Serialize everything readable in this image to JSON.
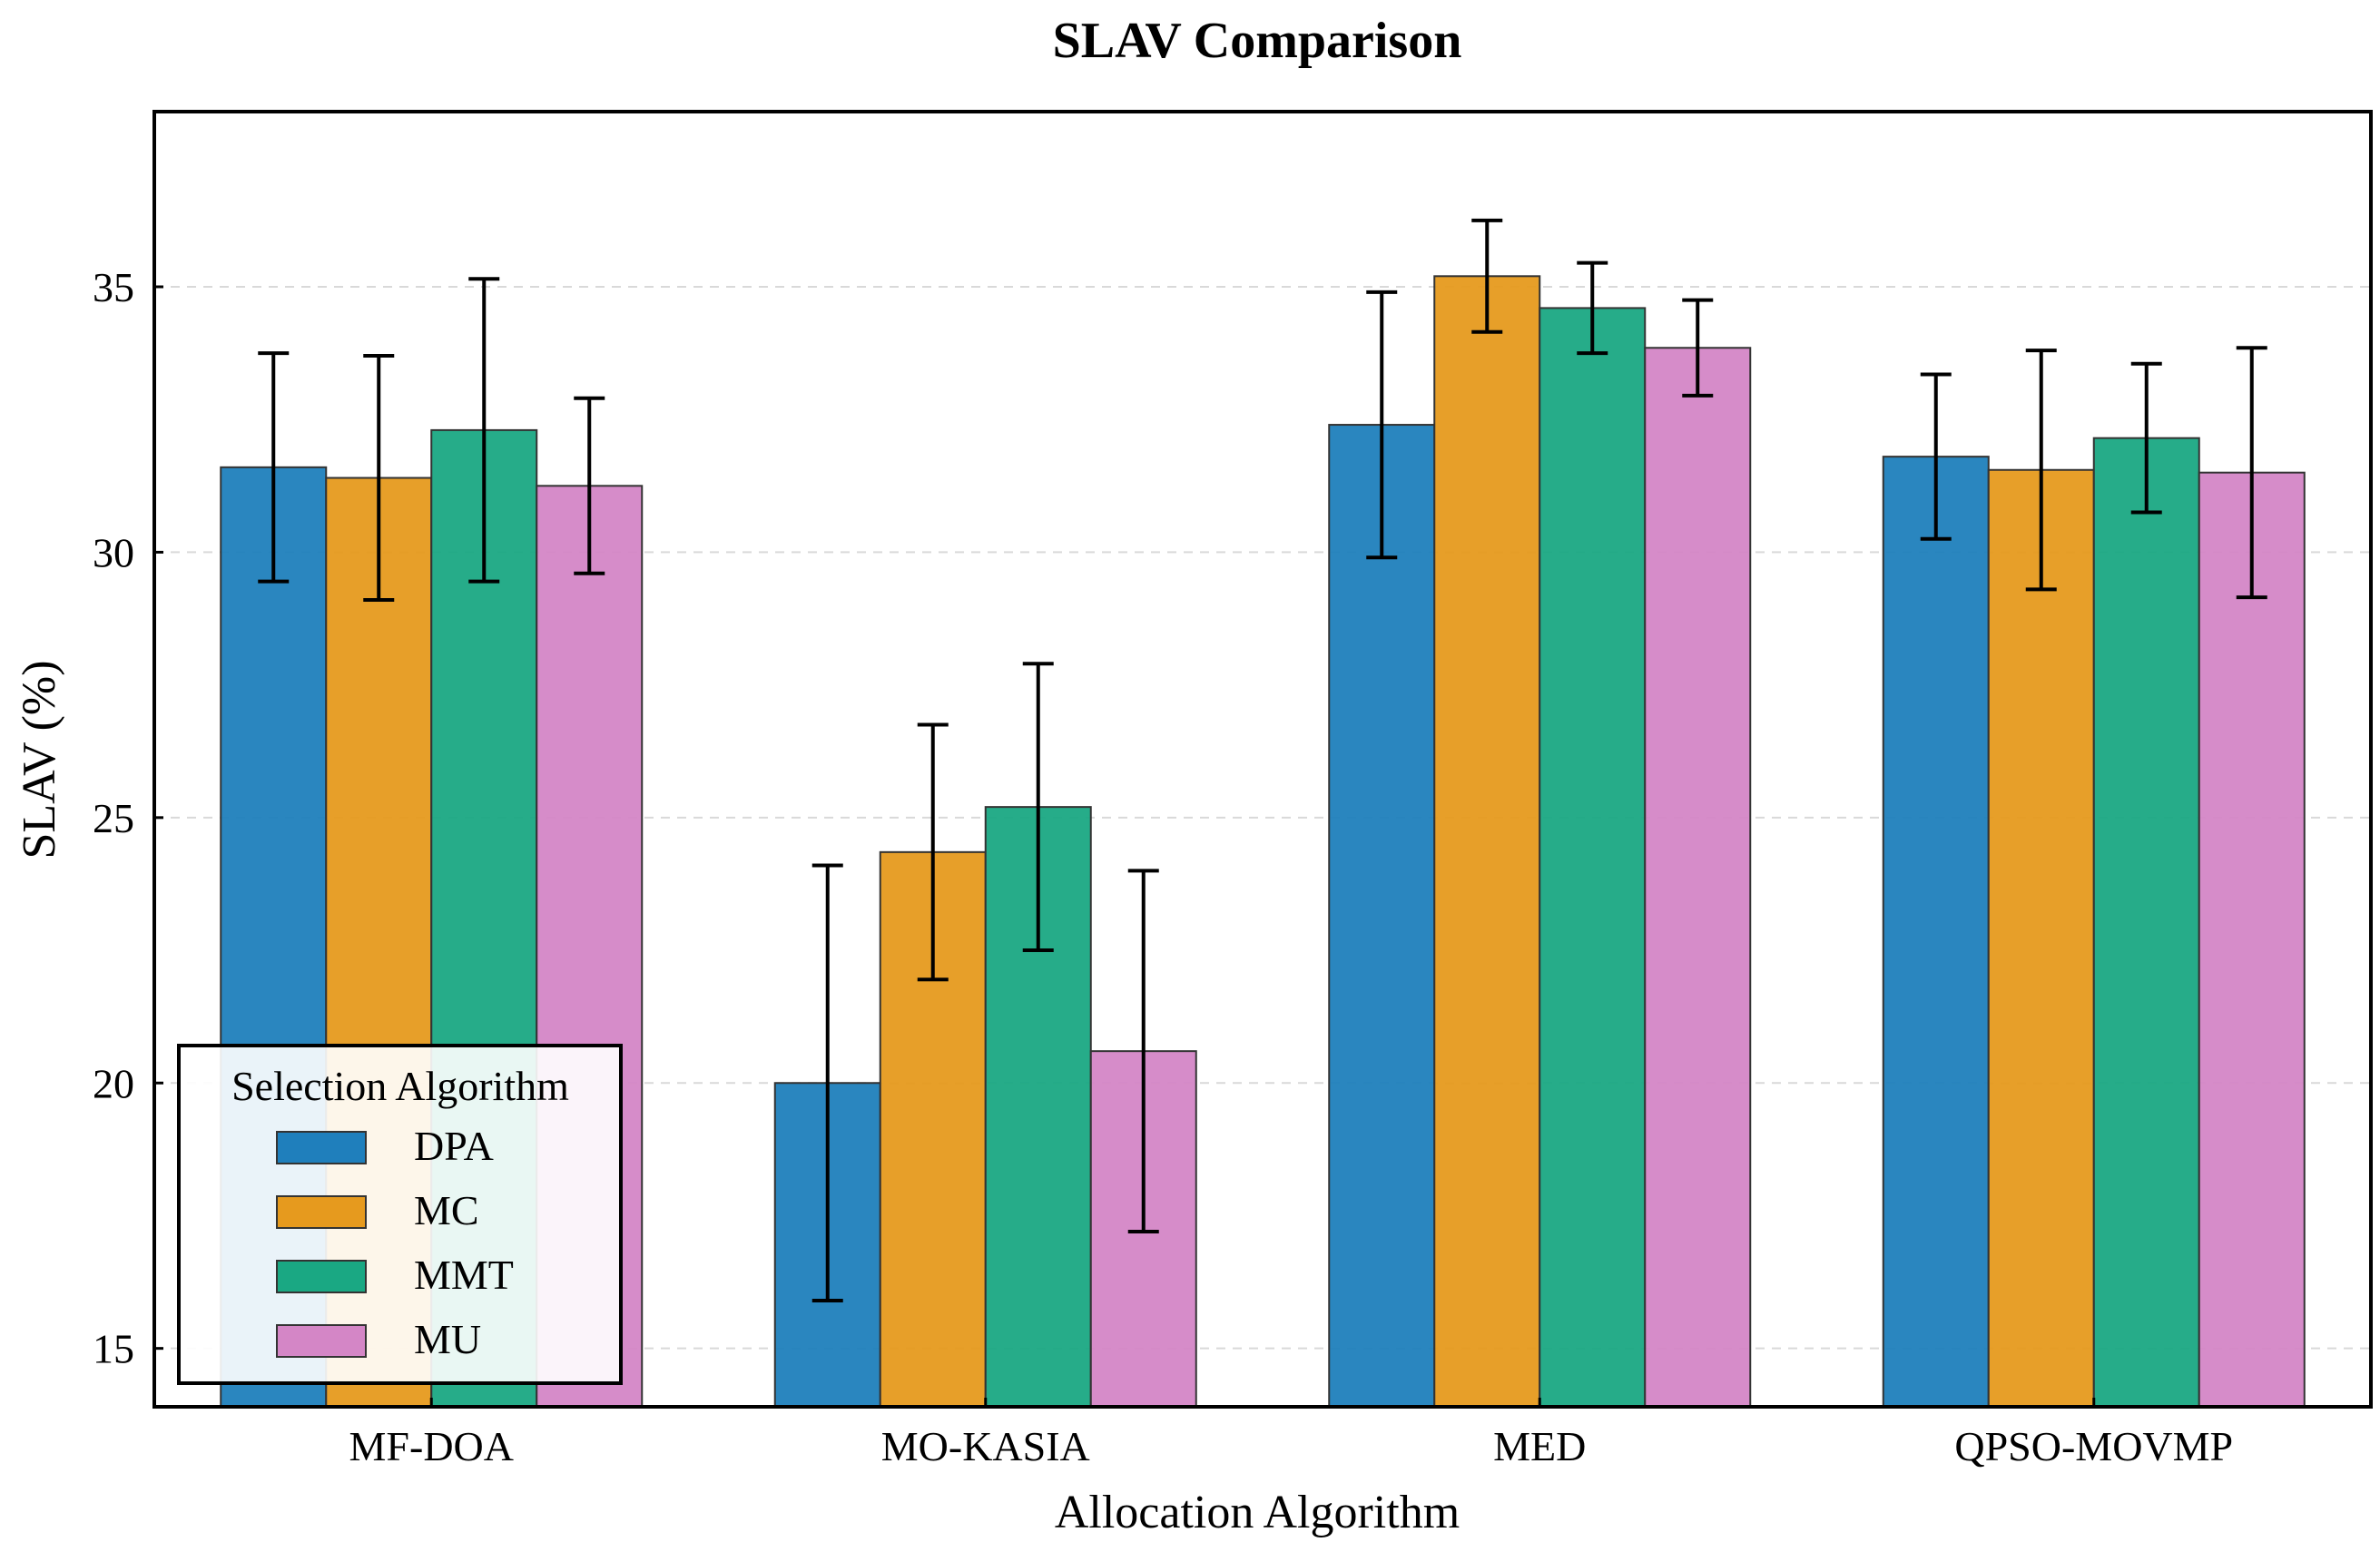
{
  "chart_data": {
    "type": "bar",
    "title": "SLAV Comparison",
    "xlabel": "Allocation Algorithm",
    "ylabel": "SLAV (%)",
    "ylim": [
      13.9,
      38.3
    ],
    "yticks": [
      15,
      20,
      25,
      30,
      35
    ],
    "grid": "horizontal-dashed",
    "categories": [
      "MF-DOA",
      "MO-KASIA",
      "MED",
      "QPSO-MOVMP"
    ],
    "legend": {
      "title": "Selection Algorithm",
      "position": "lower-left"
    },
    "series": [
      {
        "name": "DPA",
        "color": "#1f7fbc",
        "values": [
          31.6,
          20.0,
          32.4,
          31.8
        ],
        "errors": [
          2.15,
          4.1,
          2.5,
          1.55
        ]
      },
      {
        "name": "MC",
        "color": "#e69a1e",
        "values": [
          31.4,
          24.35,
          35.2,
          31.55
        ],
        "errors": [
          2.3,
          2.4,
          1.05,
          2.25
        ]
      },
      {
        "name": "MMT",
        "color": "#1aa883",
        "values": [
          32.3,
          25.2,
          34.6,
          32.15
        ],
        "errors": [
          2.85,
          2.7,
          0.85,
          1.4
        ]
      },
      {
        "name": "MU",
        "color": "#d486c6",
        "values": [
          31.25,
          20.6,
          33.85,
          31.5
        ],
        "errors": [
          1.65,
          3.4,
          0.9,
          2.35
        ]
      }
    ]
  }
}
